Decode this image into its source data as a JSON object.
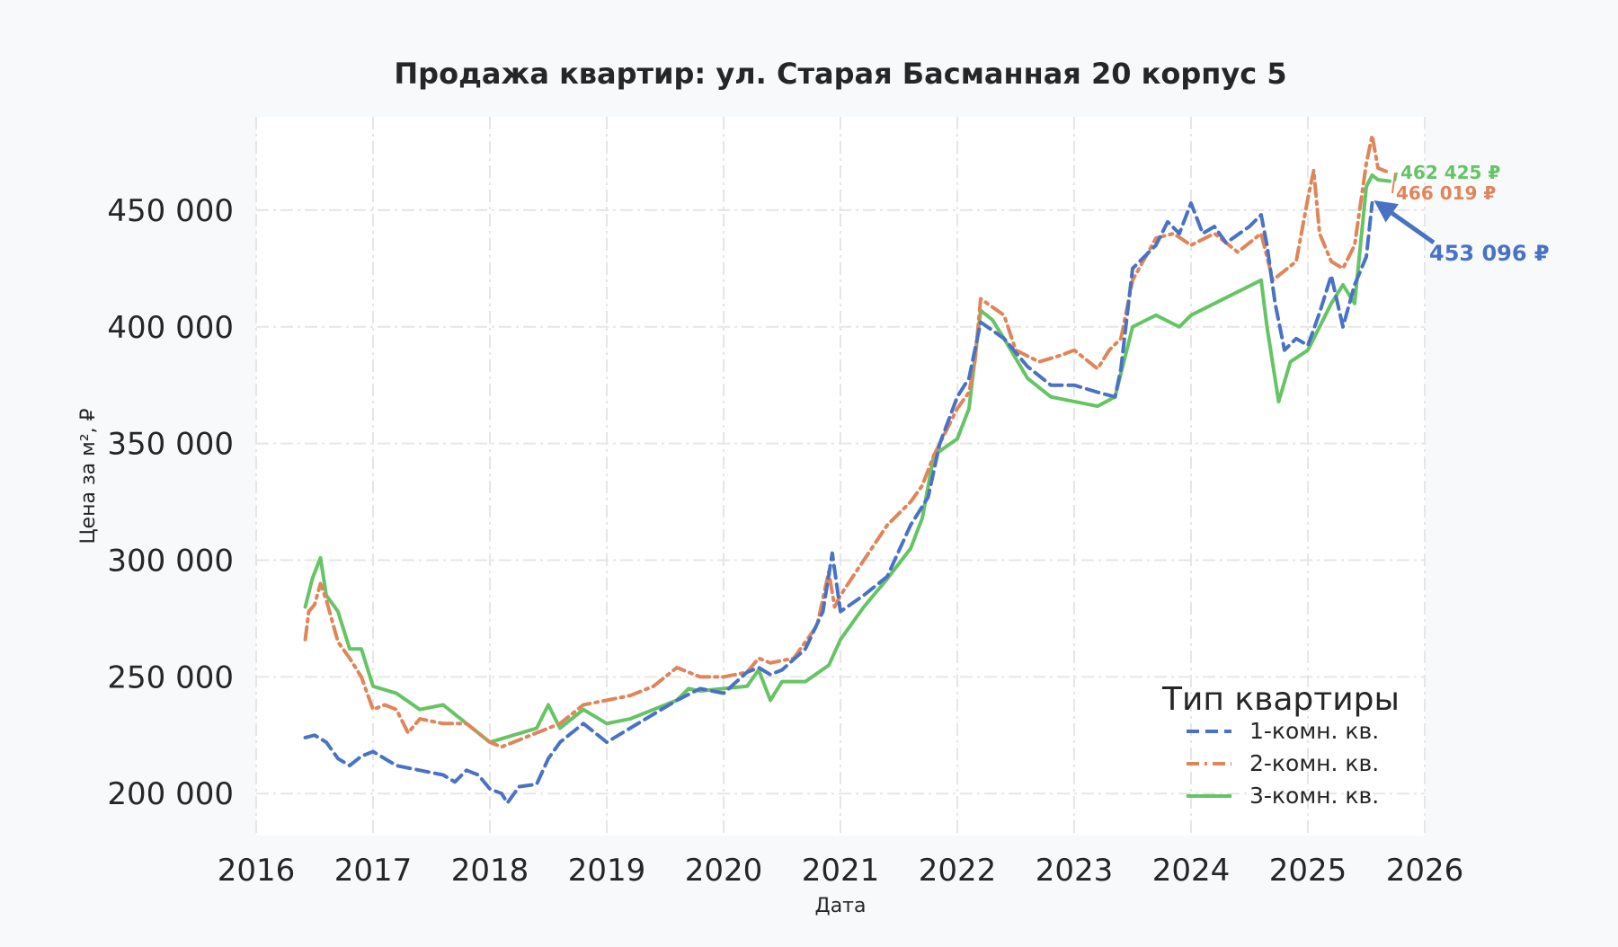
{
  "chart_data": {
    "type": "line",
    "title": "Продажа квартир: ул. Старая Басманная 20 корпус 5",
    "xlabel": "Дата",
    "ylabel": "Цена за м², ₽",
    "xlim": [
      2016.0,
      2026.0
    ],
    "ylim": [
      182000,
      490000
    ],
    "x_ticks": [
      2016,
      2017,
      2018,
      2019,
      2020,
      2021,
      2022,
      2023,
      2024,
      2025,
      2026
    ],
    "x_tick_labels": [
      "2016",
      "2017",
      "2018",
      "2019",
      "2020",
      "2021",
      "2022",
      "2023",
      "2024",
      "2025",
      "2026"
    ],
    "y_ticks": [
      200000,
      250000,
      300000,
      350000,
      400000,
      450000
    ],
    "y_tick_labels": [
      "200 000",
      "250 000",
      "300 000",
      "350 000",
      "400 000",
      "450 000"
    ],
    "grid": true,
    "legend": {
      "title": "Тип квартиры",
      "placement": "lower-right"
    },
    "series": [
      {
        "name": "1-комн. кв.",
        "color": "#4a72c4",
        "dash": "dashed",
        "x": [
          2016.42,
          2016.5,
          2016.6,
          2016.7,
          2016.8,
          2016.9,
          2017.0,
          2017.2,
          2017.4,
          2017.6,
          2017.7,
          2017.8,
          2017.9,
          2018.0,
          2018.1,
          2018.15,
          2018.25,
          2018.4,
          2018.5,
          2018.6,
          2018.8,
          2018.9,
          2019.0,
          2019.2,
          2019.4,
          2019.6,
          2019.8,
          2020.0,
          2020.2,
          2020.3,
          2020.4,
          2020.5,
          2020.7,
          2020.85,
          2020.93,
          2021.0,
          2021.2,
          2021.4,
          2021.6,
          2021.75,
          2021.85,
          2022.0,
          2022.1,
          2022.2,
          2022.4,
          2022.6,
          2022.8,
          2023.0,
          2023.2,
          2023.35,
          2023.4,
          2023.5,
          2023.7,
          2023.8,
          2023.9,
          2024.0,
          2024.1,
          2024.2,
          2024.3,
          2024.5,
          2024.6,
          2024.65,
          2024.72,
          2024.8,
          2024.9,
          2025.0,
          2025.1,
          2025.2,
          2025.3,
          2025.4,
          2025.5,
          2025.55
        ],
        "y": [
          224000,
          225000,
          222000,
          215000,
          212000,
          216000,
          218000,
          212000,
          210000,
          208000,
          205000,
          210000,
          208000,
          202000,
          200000,
          196000,
          203000,
          204000,
          215000,
          222000,
          230000,
          226000,
          222000,
          228000,
          234000,
          240000,
          245000,
          243000,
          252000,
          254000,
          251000,
          253000,
          262000,
          278000,
          303000,
          278000,
          285000,
          293000,
          315000,
          327000,
          350000,
          370000,
          378000,
          402000,
          395000,
          383000,
          375000,
          375000,
          372000,
          370000,
          382000,
          425000,
          435000,
          445000,
          440000,
          453000,
          440000,
          443000,
          436000,
          443000,
          448000,
          435000,
          410000,
          390000,
          395000,
          392000,
          406000,
          422000,
          400000,
          418000,
          430000,
          453096
        ]
      },
      {
        "name": "2-комн. кв.",
        "color": "#e0855a",
        "dash": "dashdot",
        "x": [
          2016.42,
          2016.45,
          2016.5,
          2016.55,
          2016.6,
          2016.7,
          2016.8,
          2016.9,
          2017.0,
          2017.1,
          2017.2,
          2017.3,
          2017.4,
          2017.6,
          2017.8,
          2018.0,
          2018.1,
          2018.2,
          2018.4,
          2018.6,
          2018.8,
          2019.0,
          2019.2,
          2019.4,
          2019.6,
          2019.8,
          2020.0,
          2020.2,
          2020.3,
          2020.4,
          2020.6,
          2020.8,
          2020.9,
          2020.95,
          2021.0,
          2021.2,
          2021.4,
          2021.6,
          2021.7,
          2021.8,
          2022.0,
          2022.1,
          2022.15,
          2022.2,
          2022.4,
          2022.5,
          2022.7,
          2022.9,
          2023.0,
          2023.2,
          2023.3,
          2023.4,
          2023.5,
          2023.7,
          2023.85,
          2024.0,
          2024.2,
          2024.4,
          2024.6,
          2024.7,
          2024.9,
          2025.0,
          2025.05,
          2025.1,
          2025.2,
          2025.3,
          2025.4,
          2025.5,
          2025.55,
          2025.6,
          2025.7
        ],
        "y": [
          266000,
          278000,
          281000,
          290000,
          283000,
          265000,
          258000,
          250000,
          236000,
          238000,
          236000,
          226000,
          232000,
          230000,
          230000,
          222000,
          220000,
          222000,
          226000,
          230000,
          238000,
          240000,
          242000,
          246000,
          254000,
          250000,
          250000,
          252000,
          258000,
          256000,
          258000,
          272000,
          295000,
          280000,
          285000,
          300000,
          315000,
          325000,
          332000,
          345000,
          365000,
          372000,
          385000,
          412000,
          405000,
          390000,
          385000,
          388000,
          390000,
          382000,
          390000,
          395000,
          420000,
          438000,
          440000,
          435000,
          440000,
          432000,
          440000,
          420000,
          428000,
          455000,
          467000,
          440000,
          428000,
          425000,
          435000,
          470000,
          482000,
          468000,
          466019
        ]
      },
      {
        "name": "3-комн. кв.",
        "color": "#66c465",
        "dash": "solid",
        "x": [
          2016.42,
          2016.48,
          2016.55,
          2016.6,
          2016.7,
          2016.8,
          2016.9,
          2017.0,
          2017.2,
          2017.4,
          2017.6,
          2017.8,
          2018.0,
          2018.2,
          2018.4,
          2018.5,
          2018.6,
          2018.8,
          2019.0,
          2019.2,
          2019.4,
          2019.6,
          2019.7,
          2019.8,
          2020.0,
          2020.2,
          2020.3,
          2020.4,
          2020.5,
          2020.7,
          2020.9,
          2021.0,
          2021.2,
          2021.4,
          2021.6,
          2021.7,
          2021.8,
          2022.0,
          2022.1,
          2022.2,
          2022.3,
          2022.4,
          2022.6,
          2022.8,
          2023.0,
          2023.2,
          2023.35,
          2023.5,
          2023.7,
          2023.9,
          2024.0,
          2024.2,
          2024.4,
          2024.6,
          2024.65,
          2024.75,
          2024.85,
          2025.0,
          2025.1,
          2025.2,
          2025.3,
          2025.4,
          2025.5,
          2025.55,
          2025.6,
          2025.7
        ],
        "y": [
          280000,
          292000,
          301000,
          285000,
          278000,
          262000,
          262000,
          246000,
          243000,
          236000,
          238000,
          230000,
          222000,
          225000,
          228000,
          238000,
          228000,
          236000,
          230000,
          232000,
          236000,
          240000,
          245000,
          244000,
          245000,
          246000,
          253000,
          240000,
          248000,
          248000,
          255000,
          266000,
          280000,
          292000,
          305000,
          318000,
          345000,
          352000,
          365000,
          407000,
          403000,
          395000,
          378000,
          370000,
          368000,
          366000,
          370000,
          400000,
          405000,
          400000,
          405000,
          410000,
          415000,
          420000,
          400000,
          368000,
          385000,
          390000,
          400000,
          410000,
          418000,
          410000,
          460000,
          465000,
          463000,
          462425
        ]
      }
    ],
    "annotations": [
      {
        "series": "1-комн. кв.",
        "text": "453 096 ₽",
        "value": 453096
      },
      {
        "series": "2-комн. кв.",
        "text": "466 019 ₽",
        "value": 466019
      },
      {
        "series": "3-комн. кв.",
        "text": "462 425 ₽",
        "value": 462425
      }
    ]
  }
}
